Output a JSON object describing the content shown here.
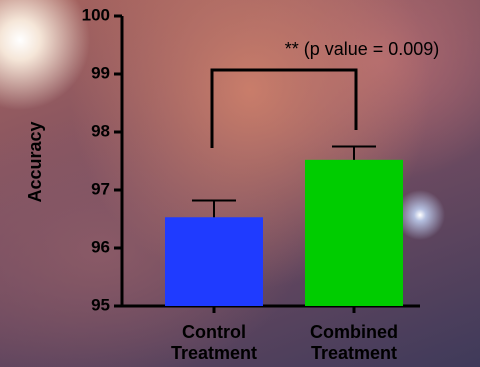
{
  "chart_data": {
    "type": "bar",
    "ylabel": "Accuracy",
    "categories": [
      "Control Treatment",
      "Combined Treatment"
    ],
    "values": [
      96.53,
      97.52
    ],
    "errors": [
      0.29,
      0.23
    ],
    "colors": [
      "#1f3bff",
      "#00cc00"
    ],
    "ylim": [
      95,
      100
    ],
    "yticks": [
      95,
      96,
      97,
      98,
      99,
      100
    ],
    "annotation": "** (p value = 0.009)"
  }
}
